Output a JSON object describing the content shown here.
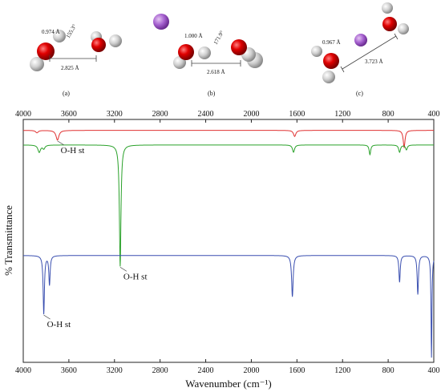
{
  "panels": {
    "a": {
      "label": "(a)",
      "bond_length": "0.974 Å",
      "angle": "155.3°",
      "distance": "2.825 Å"
    },
    "b": {
      "label": "(b)",
      "bond_length": "1.000 Å",
      "angle": "171.9°",
      "distance": "2.618 Å"
    },
    "c": {
      "label": "(c)",
      "bond_length": "0.967 Å",
      "distance": "3.723 Å"
    }
  },
  "colors": {
    "oxygen": "#d40000",
    "hydrogen": "#c8c8c8",
    "ion": "#9b59c9",
    "red_series": "#e03030",
    "green_series": "#2aa12a",
    "blue_series": "#3a4fb0"
  },
  "chart_data": {
    "type": "line",
    "xlabel": "Wavenumber (cm⁻¹)",
    "ylabel": "% Transmittance",
    "xlim": [
      4000,
      400
    ],
    "x_reversed": true,
    "ylim": [
      0,
      1
    ],
    "y_ticks_shown": false,
    "grid": false,
    "x_ticks": [
      4000,
      3600,
      3200,
      2800,
      2400,
      2000,
      1600,
      1200,
      800,
      400
    ],
    "series": [
      {
        "color": "#e03030",
        "baseline": 0.955,
        "peaks": [
          {
            "x": 3700,
            "depth": 0.04,
            "width": 22
          },
          {
            "x": 3880,
            "depth": 0.01,
            "width": 20
          },
          {
            "x": 1620,
            "depth": 0.025,
            "width": 18
          },
          {
            "x": 660,
            "depth": 0.07,
            "width": 14
          }
        ]
      },
      {
        "color": "#2aa12a",
        "baseline": 0.895,
        "peaks": [
          {
            "x": 3860,
            "depth": 0.03,
            "width": 20
          },
          {
            "x": 3820,
            "depth": 0.015,
            "width": 18
          },
          {
            "x": 3150,
            "depth": 0.5,
            "width": 12
          },
          {
            "x": 1630,
            "depth": 0.03,
            "width": 16
          },
          {
            "x": 960,
            "depth": 0.04,
            "width": 12
          },
          {
            "x": 700,
            "depth": 0.03,
            "width": 14
          },
          {
            "x": 640,
            "depth": 0.02,
            "width": 14
          }
        ]
      },
      {
        "color": "#3a4fb0",
        "baseline": 0.44,
        "peaks": [
          {
            "x": 3820,
            "depth": 0.24,
            "width": 10
          },
          {
            "x": 3770,
            "depth": 0.12,
            "width": 10
          },
          {
            "x": 1640,
            "depth": 0.17,
            "width": 12
          },
          {
            "x": 700,
            "depth": 0.11,
            "width": 10
          },
          {
            "x": 540,
            "depth": 0.16,
            "width": 10
          },
          {
            "x": 420,
            "depth": 0.42,
            "width": 7
          }
        ]
      }
    ],
    "annotations": [
      {
        "text": "O-H st",
        "x": 3700,
        "series": 0
      },
      {
        "text": "O-H st",
        "x": 3150,
        "series": 1
      },
      {
        "text": "O-H st",
        "x": 3820,
        "series": 2
      }
    ]
  }
}
